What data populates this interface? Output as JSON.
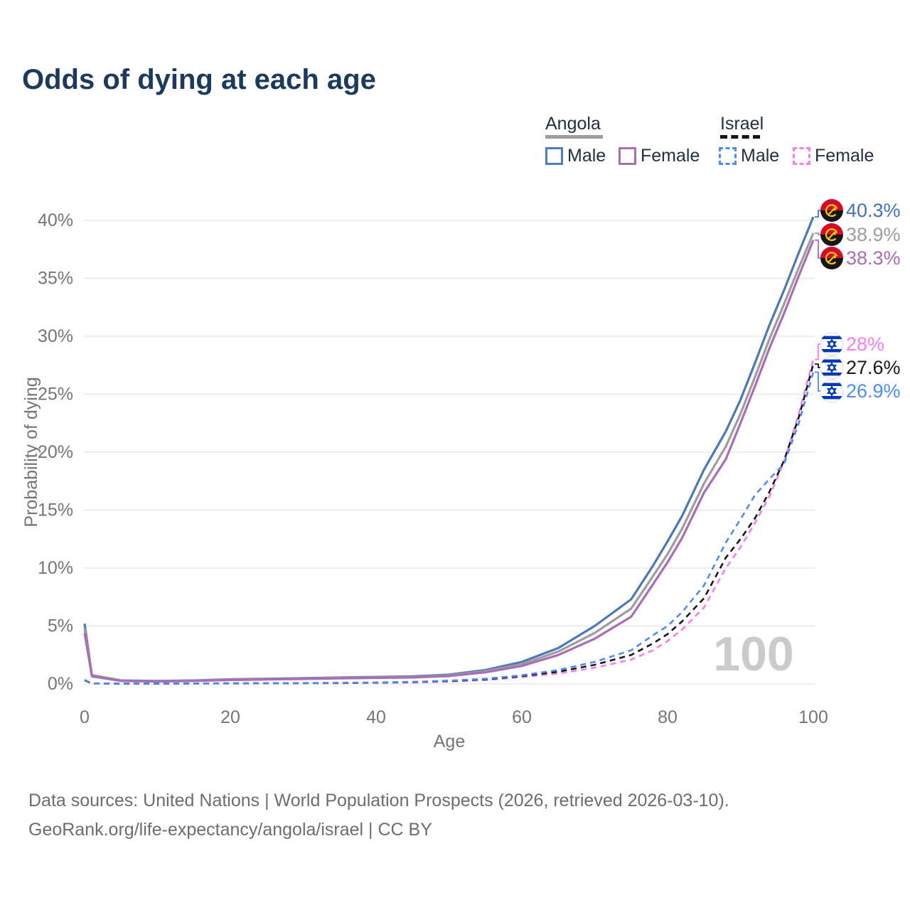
{
  "title": "Odds of dying at each age",
  "legend": {
    "groups": [
      {
        "label": "Angola",
        "line_style": "solid",
        "underline_color": "#9d9d9d",
        "items": [
          {
            "label": "Male",
            "color": "#4a78b8"
          },
          {
            "label": "Female",
            "color": "#aa6cb4"
          }
        ]
      },
      {
        "label": "Israel",
        "line_style": "dashed",
        "underline_color": "#141414",
        "items": [
          {
            "label": "Male",
            "color": "#4d8cf5"
          },
          {
            "label": "Female",
            "color": "#f97cee"
          }
        ]
      }
    ]
  },
  "watermark": "100",
  "footer": {
    "line1": "Data sources: United Nations | World Population Prospects (2026, retrieved 2026-03-10).",
    "line2": "GeoRank.org/life-expectancy/angola/israel | CC BY"
  },
  "chart_data": {
    "type": "line",
    "title": "Odds of dying at each age",
    "xlabel": "Age",
    "ylabel": "Probability of dying",
    "xlim": [
      0,
      100
    ],
    "ylim": [
      0,
      40
    ],
    "grid": "horizontal",
    "legend_position": "top-right",
    "xticks": [
      0,
      20,
      40,
      60,
      80,
      100
    ],
    "xtick_labels": [
      "0",
      "20",
      "40",
      "60",
      "80",
      "100"
    ],
    "yticks": [
      0,
      5,
      10,
      15,
      20,
      25,
      30,
      35,
      40
    ],
    "ytick_labels": [
      "0%",
      "5%",
      "10%",
      "15%",
      "20%",
      "25%",
      "30%",
      "35%",
      "40%"
    ],
    "ages": [
      0,
      1,
      5,
      10,
      15,
      20,
      25,
      30,
      35,
      40,
      45,
      50,
      55,
      60,
      65,
      70,
      75,
      78,
      80,
      82,
      85,
      88,
      90,
      92,
      94,
      96,
      98,
      100
    ],
    "series": [
      {
        "name": "Angola Male",
        "country": "Angola",
        "sex": "Male",
        "style": "solid",
        "color": "#4a78b8",
        "flag": "angola",
        "end_label": "40.3%",
        "label_color": "#4472b8",
        "values": [
          5.2,
          0.75,
          0.3,
          0.25,
          0.3,
          0.4,
          0.45,
          0.5,
          0.55,
          0.6,
          0.65,
          0.8,
          1.2,
          1.9,
          3.1,
          5.0,
          7.3,
          10.2,
          12.3,
          14.5,
          18.5,
          21.8,
          24.5,
          27.7,
          31.0,
          34.0,
          37.2,
          40.3
        ]
      },
      {
        "name": "Angola",
        "country": "Angola",
        "sex": "Both",
        "style": "solid",
        "color": "#9d9d9d",
        "flag": "angola",
        "end_label": "38.9%",
        "label_color": "#9d9d9d",
        "values": [
          4.8,
          0.7,
          0.28,
          0.23,
          0.28,
          0.37,
          0.42,
          0.47,
          0.52,
          0.56,
          0.6,
          0.74,
          1.1,
          1.7,
          2.8,
          4.4,
          6.5,
          9.3,
          11.2,
          13.4,
          17.3,
          20.5,
          23.3,
          26.5,
          29.8,
          32.8,
          35.9,
          38.9
        ]
      },
      {
        "name": "Angola Female",
        "country": "Angola",
        "sex": "Female",
        "style": "solid",
        "color": "#aa6cb4",
        "flag": "angola",
        "end_label": "38.3%",
        "label_color": "#aa6cb4",
        "values": [
          4.4,
          0.65,
          0.26,
          0.21,
          0.26,
          0.34,
          0.38,
          0.43,
          0.48,
          0.52,
          0.56,
          0.68,
          1.0,
          1.55,
          2.5,
          3.9,
          5.8,
          8.6,
          10.5,
          12.6,
          16.5,
          19.4,
          22.5,
          25.7,
          29.0,
          32.0,
          35.2,
          38.3
        ]
      },
      {
        "name": "Israel Female",
        "country": "Israel",
        "sex": "Female",
        "style": "dashed",
        "color": "#f97cee",
        "flag": "israel",
        "end_label": "28%",
        "label_color": "#f97cee",
        "values": [
          0.3,
          0.04,
          0.02,
          0.02,
          0.03,
          0.04,
          0.05,
          0.06,
          0.07,
          0.09,
          0.13,
          0.2,
          0.33,
          0.58,
          0.9,
          1.4,
          2.1,
          2.9,
          3.7,
          4.7,
          6.6,
          10.0,
          11.8,
          13.9,
          16.2,
          19.2,
          23.3,
          28.0
        ]
      },
      {
        "name": "Israel",
        "country": "Israel",
        "sex": "Both",
        "style": "dashed",
        "color": "#161616",
        "flag": "israel",
        "end_label": "27.6%",
        "label_color": "#1a1a1a",
        "values": [
          0.32,
          0.045,
          0.025,
          0.025,
          0.035,
          0.05,
          0.06,
          0.07,
          0.08,
          0.11,
          0.16,
          0.25,
          0.4,
          0.68,
          1.05,
          1.65,
          2.5,
          3.5,
          4.3,
          5.4,
          7.4,
          10.9,
          12.5,
          14.3,
          16.6,
          19.3,
          23.0,
          27.6
        ]
      },
      {
        "name": "Israel Male",
        "country": "Israel",
        "sex": "Male",
        "style": "dashed",
        "color": "#4d8cf5",
        "flag": "israel",
        "end_label": "26.9%",
        "label_color": "#4d8cf5",
        "values": [
          0.35,
          0.05,
          0.03,
          0.03,
          0.04,
          0.06,
          0.07,
          0.08,
          0.09,
          0.12,
          0.18,
          0.28,
          0.45,
          0.75,
          1.2,
          1.9,
          2.9,
          4.2,
          5.0,
          6.2,
          8.5,
          12.2,
          14.2,
          16.3,
          17.7,
          19.0,
          22.5,
          26.9
        ]
      }
    ]
  }
}
